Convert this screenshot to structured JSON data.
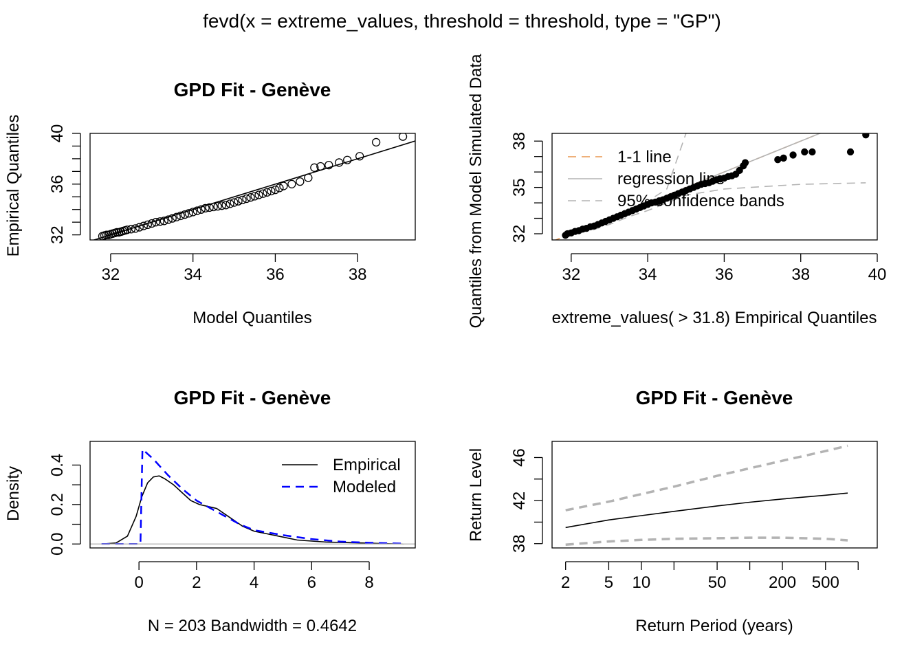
{
  "figure": {
    "main_title": "fevd(x = extreme_values, threshold = threshold, type = \"GP\")"
  },
  "chart_data": [
    {
      "id": "qq-model",
      "type": "scatter",
      "title": "GPD Fit - Genève",
      "xlabel": "Model Quantiles",
      "ylabel": "Empirical Quantiles",
      "xlim": [
        31.5,
        39.4
      ],
      "ylim": [
        31.6,
        40.0
      ],
      "xticks": [
        32,
        34,
        36,
        38
      ],
      "yticks": [
        32,
        33,
        34,
        35,
        36,
        37,
        38,
        39,
        40
      ],
      "ytick_labels": [
        "32",
        "",
        "",
        "",
        "36",
        "",
        "",
        "",
        "40"
      ],
      "points": [
        [
          31.8,
          31.9
        ],
        [
          31.85,
          31.95
        ],
        [
          31.9,
          32.0
        ],
        [
          31.95,
          32.0
        ],
        [
          32.0,
          32.05
        ],
        [
          32.05,
          32.1
        ],
        [
          32.1,
          32.15
        ],
        [
          32.15,
          32.2
        ],
        [
          32.2,
          32.2
        ],
        [
          32.25,
          32.25
        ],
        [
          32.3,
          32.3
        ],
        [
          32.35,
          32.35
        ],
        [
          32.4,
          32.4
        ],
        [
          32.5,
          32.45
        ],
        [
          32.6,
          32.5
        ],
        [
          32.7,
          32.6
        ],
        [
          32.8,
          32.7
        ],
        [
          32.9,
          32.8
        ],
        [
          33.0,
          32.9
        ],
        [
          33.1,
          33.0
        ],
        [
          33.2,
          33.05
        ],
        [
          33.3,
          33.1
        ],
        [
          33.4,
          33.2
        ],
        [
          33.5,
          33.3
        ],
        [
          33.6,
          33.4
        ],
        [
          33.7,
          33.5
        ],
        [
          33.8,
          33.6
        ],
        [
          33.9,
          33.7
        ],
        [
          34.0,
          33.8
        ],
        [
          34.1,
          33.9
        ],
        [
          34.2,
          34.0
        ],
        [
          34.3,
          34.1
        ],
        [
          34.4,
          34.15
        ],
        [
          34.5,
          34.2
        ],
        [
          34.6,
          34.25
        ],
        [
          34.7,
          34.3
        ],
        [
          34.8,
          34.35
        ],
        [
          34.9,
          34.45
        ],
        [
          35.0,
          34.55
        ],
        [
          35.1,
          34.65
        ],
        [
          35.2,
          34.75
        ],
        [
          35.3,
          34.85
        ],
        [
          35.4,
          34.95
        ],
        [
          35.5,
          35.05
        ],
        [
          35.6,
          35.15
        ],
        [
          35.7,
          35.25
        ],
        [
          35.8,
          35.35
        ],
        [
          35.9,
          35.45
        ],
        [
          36.0,
          35.55
        ],
        [
          36.1,
          35.7
        ],
        [
          36.2,
          35.85
        ],
        [
          36.4,
          36.0
        ],
        [
          36.6,
          36.2
        ],
        [
          36.8,
          36.5
        ],
        [
          36.95,
          37.3
        ],
        [
          37.1,
          37.4
        ],
        [
          37.3,
          37.5
        ],
        [
          37.55,
          37.7
        ],
        [
          37.75,
          37.9
        ],
        [
          38.05,
          38.2
        ],
        [
          38.45,
          39.3
        ],
        [
          39.1,
          39.75
        ]
      ],
      "reference_line": {
        "slope": 1.0,
        "intercept": 0.0
      }
    },
    {
      "id": "qq-simulated",
      "type": "scatter",
      "title": "",
      "xlabel": "extreme_values( > 31.8) Empirical Quantiles",
      "ylabel": "Quantiles from Model Simulated Data",
      "xlim": [
        31.5,
        40.0
      ],
      "ylim": [
        31.6,
        38.5
      ],
      "xticks": [
        32,
        34,
        36,
        38,
        40
      ],
      "yticks": [
        32,
        33,
        34,
        35,
        36,
        37,
        38
      ],
      "ytick_labels": [
        "32",
        "",
        "",
        "35",
        "",
        "",
        "38"
      ],
      "series": [
        {
          "name": "1-1 line",
          "color": "#E8964F",
          "dash": "dashed",
          "values": [
            [
              31.5,
              31.5
            ],
            [
              38.8,
              38.8
            ]
          ]
        },
        {
          "name": "regression line",
          "color": "#B3B3B3",
          "dash": "solid",
          "values": [
            [
              31.8,
              31.8
            ],
            [
              38.8,
              38.8
            ]
          ]
        },
        {
          "name": "95% confidence bands",
          "color": "#B3B3B3",
          "dash": "dashed",
          "values": [
            [
              31.85,
              31.95
            ],
            [
              32.5,
              32.2
            ],
            [
              33.0,
              32.6
            ],
            [
              33.5,
              33.1
            ],
            [
              34.0,
              33.5
            ],
            [
              34.5,
              34.0
            ],
            [
              35.0,
              34.5
            ],
            [
              36.0,
              34.9
            ],
            [
              37.0,
              35.05
            ],
            [
              38.0,
              35.2
            ],
            [
              39.7,
              35.3
            ]
          ]
        },
        {
          "name": "",
          "color": "#B3B3B3",
          "dash": "dashed",
          "values": [
            [
              31.85,
              32.15
            ],
            [
              32.5,
              32.6
            ],
            [
              33.0,
              33.0
            ],
            [
              33.5,
              33.6
            ],
            [
              34.0,
              34.1
            ],
            [
              34.5,
              34.9
            ],
            [
              35.0,
              38.5
            ]
          ]
        }
      ],
      "points": [
        [
          31.85,
          31.9
        ],
        [
          31.9,
          32.0
        ],
        [
          32.0,
          32.05
        ],
        [
          32.1,
          32.15
        ],
        [
          32.2,
          32.2
        ],
        [
          32.3,
          32.3
        ],
        [
          32.4,
          32.35
        ],
        [
          32.5,
          32.45
        ],
        [
          32.6,
          32.5
        ],
        [
          32.7,
          32.6
        ],
        [
          32.8,
          32.7
        ],
        [
          32.9,
          32.8
        ],
        [
          33.0,
          32.9
        ],
        [
          33.1,
          33.0
        ],
        [
          33.2,
          33.1
        ],
        [
          33.3,
          33.2
        ],
        [
          33.4,
          33.3
        ],
        [
          33.5,
          33.4
        ],
        [
          33.6,
          33.5
        ],
        [
          33.7,
          33.6
        ],
        [
          33.8,
          33.7
        ],
        [
          33.9,
          33.8
        ],
        [
          34.0,
          33.9
        ],
        [
          34.1,
          34.0
        ],
        [
          34.2,
          34.05
        ],
        [
          34.3,
          34.1
        ],
        [
          34.4,
          34.2
        ],
        [
          34.5,
          34.3
        ],
        [
          34.6,
          34.4
        ],
        [
          34.7,
          34.5
        ],
        [
          34.8,
          34.6
        ],
        [
          34.9,
          34.7
        ],
        [
          35.0,
          34.8
        ],
        [
          35.1,
          34.9
        ],
        [
          35.2,
          35.0
        ],
        [
          35.3,
          35.1
        ],
        [
          35.4,
          35.2
        ],
        [
          35.5,
          35.25
        ],
        [
          35.6,
          35.3
        ],
        [
          35.7,
          35.4
        ],
        [
          35.8,
          35.5
        ],
        [
          35.9,
          35.55
        ],
        [
          36.0,
          35.6
        ],
        [
          36.1,
          35.7
        ],
        [
          36.2,
          35.75
        ],
        [
          36.3,
          35.85
        ],
        [
          36.4,
          36.1
        ],
        [
          36.5,
          36.4
        ],
        [
          36.55,
          36.6
        ],
        [
          37.4,
          36.8
        ],
        [
          37.55,
          36.9
        ],
        [
          37.8,
          37.1
        ],
        [
          38.1,
          37.3
        ],
        [
          38.3,
          37.3
        ],
        [
          39.3,
          37.3
        ],
        [
          39.7,
          38.4
        ]
      ]
    },
    {
      "id": "density",
      "type": "line",
      "title": "GPD Fit - Genève",
      "xlabel": "N = 203   Bandwidth = 0.4642",
      "ylabel": "Density",
      "xlim": [
        -1.7,
        9.6
      ],
      "ylim": [
        -0.02,
        0.52
      ],
      "xticks": [
        0,
        2,
        4,
        6,
        8
      ],
      "yticks": [
        0.0,
        0.1,
        0.2,
        0.3,
        0.4
      ],
      "ytick_labels": [
        "0.0",
        "",
        "0.2",
        "",
        "0.4"
      ],
      "legend_position": "top-right",
      "series": [
        {
          "name": "Empirical",
          "color": "#000000",
          "dash": "solid",
          "values": [
            [
              -1.3,
              0.0
            ],
            [
              -0.8,
              0.005
            ],
            [
              -0.4,
              0.04
            ],
            [
              -0.1,
              0.14
            ],
            [
              0.1,
              0.24
            ],
            [
              0.3,
              0.31
            ],
            [
              0.5,
              0.34
            ],
            [
              0.7,
              0.345
            ],
            [
              0.9,
              0.33
            ],
            [
              1.2,
              0.3
            ],
            [
              1.5,
              0.26
            ],
            [
              1.8,
              0.22
            ],
            [
              2.1,
              0.2
            ],
            [
              2.4,
              0.19
            ],
            [
              2.7,
              0.18
            ],
            [
              3.0,
              0.15
            ],
            [
              3.3,
              0.12
            ],
            [
              3.6,
              0.09
            ],
            [
              4.0,
              0.065
            ],
            [
              4.5,
              0.05
            ],
            [
              5.0,
              0.035
            ],
            [
              5.5,
              0.02
            ],
            [
              6.0,
              0.015
            ],
            [
              6.5,
              0.01
            ],
            [
              7.0,
              0.008
            ],
            [
              7.5,
              0.006
            ],
            [
              8.0,
              0.004
            ],
            [
              8.5,
              0.002
            ],
            [
              9.2,
              0.0
            ]
          ]
        },
        {
          "name": "Modeled",
          "color": "#0000FF",
          "dash": "dashed",
          "values": [
            [
              -1.3,
              0.0
            ],
            [
              0.05,
              0.0
            ],
            [
              0.08,
              0.2
            ],
            [
              0.12,
              0.48
            ],
            [
              0.5,
              0.43
            ],
            [
              1.0,
              0.35
            ],
            [
              1.5,
              0.28
            ],
            [
              2.0,
              0.22
            ],
            [
              2.5,
              0.18
            ],
            [
              3.0,
              0.14
            ],
            [
              3.5,
              0.1
            ],
            [
              4.0,
              0.07
            ],
            [
              5.0,
              0.045
            ],
            [
              6.0,
              0.025
            ],
            [
              7.0,
              0.012
            ],
            [
              8.0,
              0.006
            ],
            [
              9.2,
              0.002
            ]
          ]
        },
        {
          "name": "",
          "color": "#BEBEBE",
          "dash": "solid",
          "values": [
            [
              -1.7,
              0.0
            ],
            [
              9.6,
              0.0
            ]
          ]
        }
      ]
    },
    {
      "id": "return-level",
      "type": "line",
      "title": "GPD Fit - Genève",
      "xlabel": "Return Period (years)",
      "ylabel": "Return Level",
      "xscale": "log",
      "xlim": [
        1.5,
        1500
      ],
      "ylim": [
        37.6,
        47.5
      ],
      "xticks": [
        2,
        5,
        10,
        20,
        50,
        100,
        200,
        500,
        1000
      ],
      "xtick_labels": [
        "2",
        "5",
        "10",
        "",
        "50",
        "",
        "200",
        "500",
        ""
      ],
      "yticks": [
        38,
        40,
        42,
        44,
        46
      ],
      "ytick_labels": [
        "38",
        "",
        "42",
        "",
        "46"
      ],
      "series": [
        {
          "name": "",
          "color": "#000000",
          "dash": "solid",
          "values": [
            [
              2,
              39.5
            ],
            [
              5,
              40.2
            ],
            [
              10,
              40.6
            ],
            [
              20,
              41.0
            ],
            [
              50,
              41.5
            ],
            [
              100,
              41.85
            ],
            [
              200,
              42.15
            ],
            [
              500,
              42.5
            ],
            [
              800,
              42.7
            ]
          ]
        },
        {
          "name": "",
          "color": "#B3B3B3",
          "dash": "dashed",
          "values": [
            [
              2,
              41.1
            ],
            [
              5,
              41.9
            ],
            [
              10,
              42.6
            ],
            [
              20,
              43.3
            ],
            [
              50,
              44.3
            ],
            [
              100,
              45.0
            ],
            [
              200,
              45.7
            ],
            [
              500,
              46.6
            ],
            [
              800,
              47.1
            ]
          ]
        },
        {
          "name": "",
          "color": "#B3B3B3",
          "dash": "dashed",
          "values": [
            [
              2,
              37.9
            ],
            [
              5,
              38.2
            ],
            [
              10,
              38.35
            ],
            [
              20,
              38.45
            ],
            [
              50,
              38.5
            ],
            [
              100,
              38.55
            ],
            [
              200,
              38.55
            ],
            [
              500,
              38.45
            ],
            [
              800,
              38.3
            ]
          ]
        }
      ]
    }
  ]
}
